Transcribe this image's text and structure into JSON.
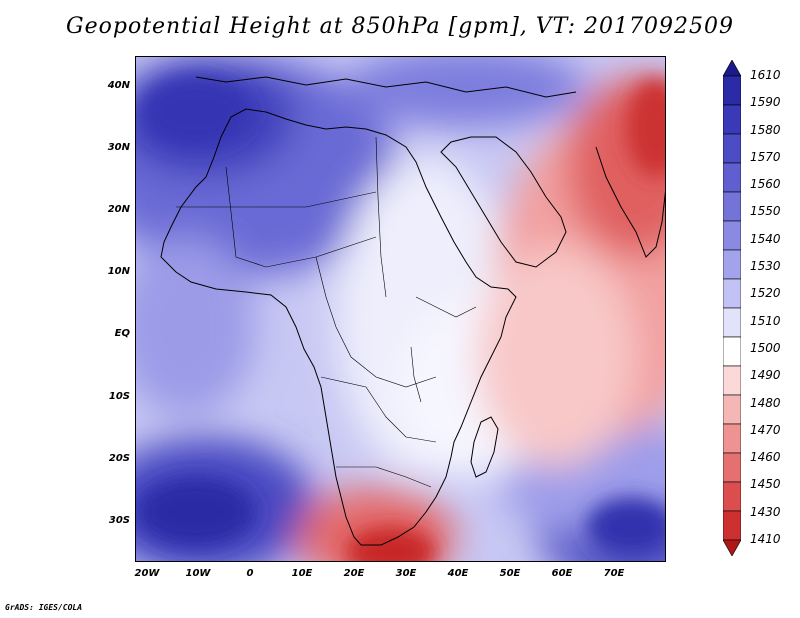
{
  "title": "Geopotential Height at 850hPa [gpm], VT: 2017092509",
  "credit": "GrADS: IGES/COLA",
  "map": {
    "region": "Africa",
    "lat_labels": [
      "40N",
      "30N",
      "20N",
      "10N",
      "EQ",
      "10S",
      "20S",
      "30S"
    ],
    "lon_labels": [
      "20W",
      "10W",
      "0",
      "10E",
      "20E",
      "30E",
      "40E",
      "50E",
      "60E",
      "70E"
    ],
    "lat_range": [
      -37,
      45
    ],
    "lon_range": [
      -23,
      79
    ]
  },
  "colorbar": {
    "levels": [
      "1610",
      "1590",
      "1580",
      "1570",
      "1560",
      "1550",
      "1540",
      "1530",
      "1520",
      "1510",
      "1500",
      "1490",
      "1480",
      "1470",
      "1460",
      "1450",
      "1430",
      "1410"
    ],
    "colors": [
      "#1a1a8c",
      "#2b2ba8",
      "#3a3ab8",
      "#4c4cc4",
      "#5f5fcf",
      "#7373d8",
      "#8a8ae2",
      "#a3a3ec",
      "#c2c2f4",
      "#e2e2fa",
      "#ffffff",
      "#fbd9d9",
      "#f5b6b6",
      "#ee9292",
      "#e57070",
      "#dc4e4e",
      "#cc3030",
      "#b01818"
    ]
  },
  "colors": {
    "low_height": "#c21e1e",
    "high_height": "#2a2aa0",
    "coastline": "#000000"
  }
}
